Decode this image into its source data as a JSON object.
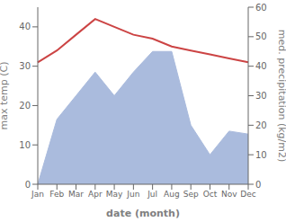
{
  "chart_data": {
    "type": "area_line",
    "xlabel": "date (month)",
    "ylabel": "max temp (C)",
    "y2label": "med. precipitation (kg/m2)",
    "categories": [
      "Jan",
      "Feb",
      "Mar",
      "Apr",
      "May",
      "Jun",
      "Jul",
      "Aug",
      "Sep",
      "Oct",
      "Nov",
      "Dec"
    ],
    "series": [
      {
        "type": "area",
        "color": "#aabbdd",
        "axis": "y2",
        "values": [
          0,
          22,
          30,
          38,
          30,
          38,
          45,
          45,
          20,
          10,
          18,
          17
        ]
      },
      {
        "type": "line",
        "color": "#cc4444",
        "values": [
          31,
          34,
          38,
          42,
          40,
          38,
          37,
          35,
          34,
          33,
          32,
          31
        ]
      }
    ],
    "ylim": [
      0,
      45
    ],
    "yticks": [
      0,
      10,
      20,
      30,
      40
    ],
    "y2lim": [
      0,
      60
    ],
    "y2ticks": [
      0,
      10,
      20,
      30,
      40,
      50,
      60
    ],
    "grid": false
  }
}
